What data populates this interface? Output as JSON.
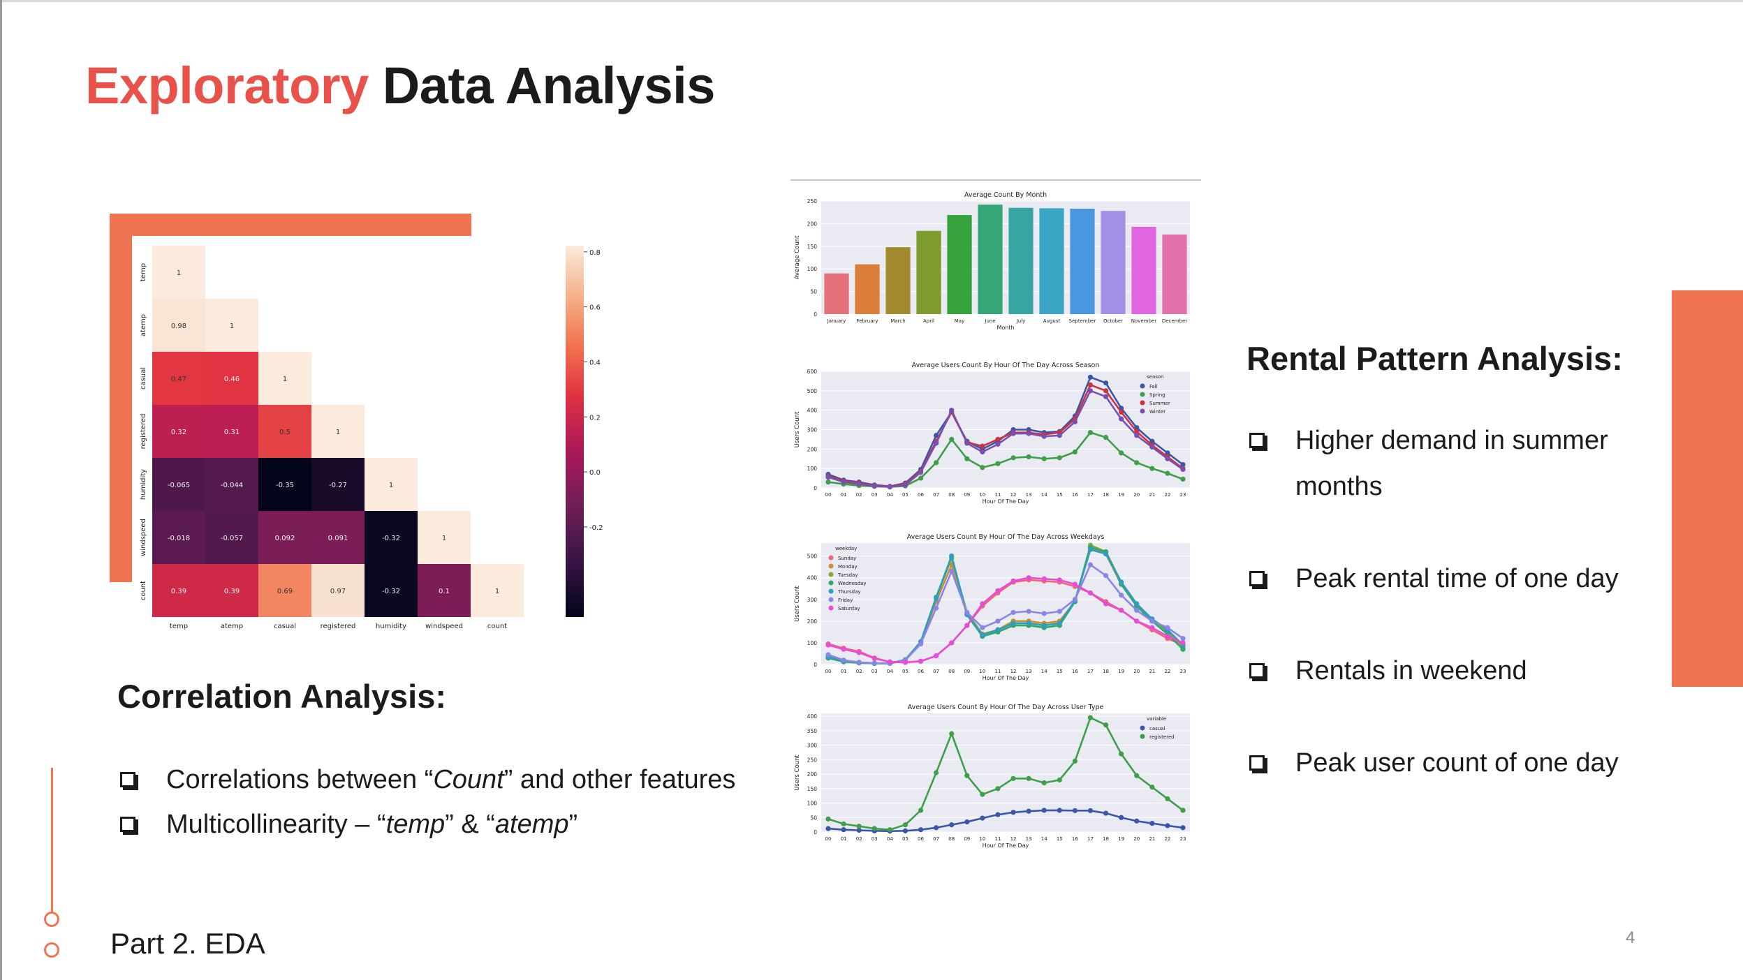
{
  "slide": {
    "title_accent": "Exploratory",
    "title_rest": "Data Analysis",
    "footer": "Part 2. EDA",
    "page_number": "4",
    "accent_color": "#e8524a",
    "orange_color": "#ef744f"
  },
  "correlation": {
    "heading": "Correlation Analysis:",
    "bullets": [
      {
        "pre": "Correlations between “",
        "em": "Count",
        "post": "” and other features"
      },
      {
        "pre": "Multicollinearity – “",
        "em": "temp",
        "mid": "” & “",
        "em2": "atemp",
        "post": "”"
      }
    ]
  },
  "rental": {
    "heading": "Rental Pattern Analysis:",
    "bullets": [
      "Higher demand in summer",
      "months",
      "Peak rental time of one day",
      "Rentals in weekend",
      "Peak user count of one day"
    ]
  },
  "chart_data": [
    {
      "type": "heatmap",
      "labels": [
        "temp",
        "atemp",
        "casual",
        "registered",
        "humidity",
        "windspeed",
        "count"
      ],
      "matrix": [
        [
          1
        ],
        [
          0.98,
          1
        ],
        [
          0.47,
          0.46,
          1
        ],
        [
          0.32,
          0.31,
          0.5,
          1
        ],
        [
          -0.065,
          -0.044,
          -0.35,
          -0.27,
          1
        ],
        [
          -0.018,
          -0.057,
          0.092,
          0.091,
          -0.32,
          1
        ],
        [
          0.39,
          0.39,
          0.69,
          0.97,
          -0.32,
          0.1,
          1
        ]
      ],
      "colorbar_ticks": [
        "0.8",
        "0.6",
        "0.4",
        "0.2",
        "0.0",
        "-0.2"
      ],
      "colorbar_values": [
        0.8,
        0.6,
        0.4,
        0.2,
        0.0,
        -0.2
      ],
      "vmin": -0.35,
      "vmax": 1
    },
    {
      "type": "bar",
      "title": "Average Count By Month",
      "xlabel": "Month",
      "ylabel": "Average Count",
      "categories": [
        "January",
        "February",
        "March",
        "April",
        "May",
        "June",
        "July",
        "August",
        "September",
        "October",
        "November",
        "December"
      ],
      "values": [
        90,
        110,
        148,
        184,
        219,
        242,
        235,
        234,
        233,
        228,
        193,
        176
      ],
      "colors": [
        "#e5727b",
        "#db7e3a",
        "#a38a2e",
        "#7e9b2e",
        "#36a33f",
        "#35a777",
        "#37a6a2",
        "#3aa6c4",
        "#4a97e0",
        "#a38fe6",
        "#e065e0",
        "#e270a8"
      ],
      "yticks": [
        0,
        50,
        100,
        150,
        200,
        250
      ],
      "ylim": [
        0,
        250
      ]
    },
    {
      "type": "line",
      "title": "Average Users Count By Hour Of The Day Across Season",
      "xlabel": "Hour Of The Day",
      "ylabel": "Users Count",
      "x": [
        "00",
        "01",
        "02",
        "03",
        "04",
        "05",
        "06",
        "07",
        "08",
        "09",
        "10",
        "11",
        "12",
        "13",
        "14",
        "15",
        "16",
        "17",
        "18",
        "19",
        "20",
        "21",
        "22",
        "23"
      ],
      "yticks": [
        0,
        100,
        200,
        300,
        400,
        500,
        600
      ],
      "ylim": [
        0,
        600
      ],
      "legend_title": "season",
      "series": [
        {
          "name": "Fall",
          "color": "#3a56a8",
          "values": [
            70,
            40,
            30,
            15,
            8,
            25,
            95,
            270,
            390,
            240,
            200,
            240,
            300,
            300,
            285,
            290,
            370,
            570,
            540,
            410,
            310,
            240,
            180,
            120
          ]
        },
        {
          "name": "Spring",
          "color": "#3f9e4a",
          "values": [
            30,
            20,
            12,
            8,
            5,
            10,
            50,
            130,
            250,
            150,
            105,
            125,
            155,
            160,
            150,
            155,
            185,
            285,
            260,
            180,
            130,
            100,
            75,
            45
          ]
        },
        {
          "name": "Summer",
          "color": "#c9343f",
          "values": [
            60,
            35,
            25,
            12,
            7,
            20,
            85,
            240,
            390,
            235,
            215,
            250,
            285,
            285,
            275,
            285,
            355,
            530,
            500,
            390,
            290,
            220,
            160,
            100
          ]
        },
        {
          "name": "Winter",
          "color": "#7a4fb2",
          "values": [
            55,
            30,
            20,
            10,
            5,
            15,
            80,
            230,
            400,
            230,
            185,
            225,
            280,
            280,
            265,
            270,
            340,
            500,
            470,
            355,
            270,
            210,
            150,
            95
          ]
        }
      ]
    },
    {
      "type": "line",
      "title": "Average Users Count By Hour Of The Day Across Weekdays",
      "xlabel": "Hour Of The Day",
      "ylabel": "Users Count",
      "x": [
        "00",
        "01",
        "02",
        "03",
        "04",
        "05",
        "06",
        "07",
        "08",
        "09",
        "10",
        "11",
        "12",
        "13",
        "14",
        "15",
        "16",
        "17",
        "18",
        "19",
        "20",
        "21",
        "22",
        "23"
      ],
      "yticks": [
        0,
        100,
        200,
        300,
        400,
        500
      ],
      "ylim": [
        0,
        560
      ],
      "legend_title": "weekday",
      "series": [
        {
          "name": "Sunday",
          "color": "#f0647a",
          "values": [
            95,
            75,
            60,
            30,
            12,
            10,
            15,
            40,
            100,
            180,
            270,
            330,
            380,
            390,
            385,
            380,
            360,
            330,
            290,
            250,
            200,
            160,
            120,
            90
          ]
        },
        {
          "name": "Monday",
          "color": "#c9912f",
          "values": [
            40,
            18,
            10,
            6,
            5,
            20,
            100,
            290,
            460,
            230,
            130,
            160,
            200,
            200,
            190,
            200,
            290,
            540,
            510,
            370,
            270,
            200,
            150,
            80
          ]
        },
        {
          "name": "Tuesday",
          "color": "#80a838",
          "values": [
            30,
            12,
            7,
            5,
            5,
            22,
            105,
            310,
            490,
            240,
            140,
            160,
            190,
            190,
            180,
            190,
            290,
            550,
            520,
            380,
            270,
            200,
            150,
            70
          ]
        },
        {
          "name": "Wednesday",
          "color": "#34a86c",
          "values": [
            30,
            14,
            8,
            5,
            5,
            22,
            105,
            310,
            500,
            230,
            130,
            150,
            180,
            180,
            170,
            180,
            290,
            540,
            520,
            370,
            270,
            200,
            140,
            70
          ]
        },
        {
          "name": "Thursday",
          "color": "#2f9dc0",
          "values": [
            35,
            15,
            8,
            5,
            5,
            22,
            105,
            305,
            500,
            230,
            135,
            160,
            190,
            190,
            180,
            190,
            295,
            530,
            510,
            380,
            280,
            210,
            160,
            90
          ]
        },
        {
          "name": "Friday",
          "color": "#8a86e6",
          "values": [
            45,
            20,
            10,
            6,
            5,
            20,
            95,
            260,
            430,
            240,
            170,
            200,
            240,
            245,
            235,
            245,
            300,
            460,
            410,
            320,
            250,
            200,
            170,
            120
          ]
        },
        {
          "name": "Saturday",
          "color": "#e44ed6",
          "values": [
            90,
            70,
            55,
            28,
            12,
            10,
            15,
            40,
            100,
            180,
            280,
            340,
            385,
            400,
            395,
            390,
            370,
            330,
            280,
            250,
            200,
            170,
            130,
            100
          ]
        }
      ]
    },
    {
      "type": "line",
      "title": "Average Users Count By Hour Of The Day Across User Type",
      "xlabel": "Hour Of The Day",
      "ylabel": "Users Count",
      "x": [
        "00",
        "01",
        "02",
        "03",
        "04",
        "05",
        "06",
        "07",
        "08",
        "09",
        "10",
        "11",
        "12",
        "13",
        "14",
        "15",
        "16",
        "17",
        "18",
        "19",
        "20",
        "21",
        "22",
        "23"
      ],
      "yticks": [
        0,
        50,
        100,
        150,
        200,
        250,
        300,
        350,
        400
      ],
      "ylim": [
        0,
        410
      ],
      "legend_title": "variable",
      "series": [
        {
          "name": "casual",
          "color": "#3a56a8",
          "values": [
            12,
            8,
            6,
            4,
            3,
            4,
            8,
            15,
            25,
            35,
            48,
            60,
            68,
            72,
            75,
            75,
            74,
            74,
            65,
            50,
            38,
            30,
            22,
            15
          ]
        },
        {
          "name": "registered",
          "color": "#3f9e4a",
          "values": [
            45,
            28,
            20,
            12,
            8,
            25,
            75,
            205,
            340,
            195,
            130,
            150,
            185,
            185,
            170,
            180,
            245,
            395,
            370,
            270,
            195,
            155,
            115,
            75
          ]
        }
      ]
    }
  ]
}
